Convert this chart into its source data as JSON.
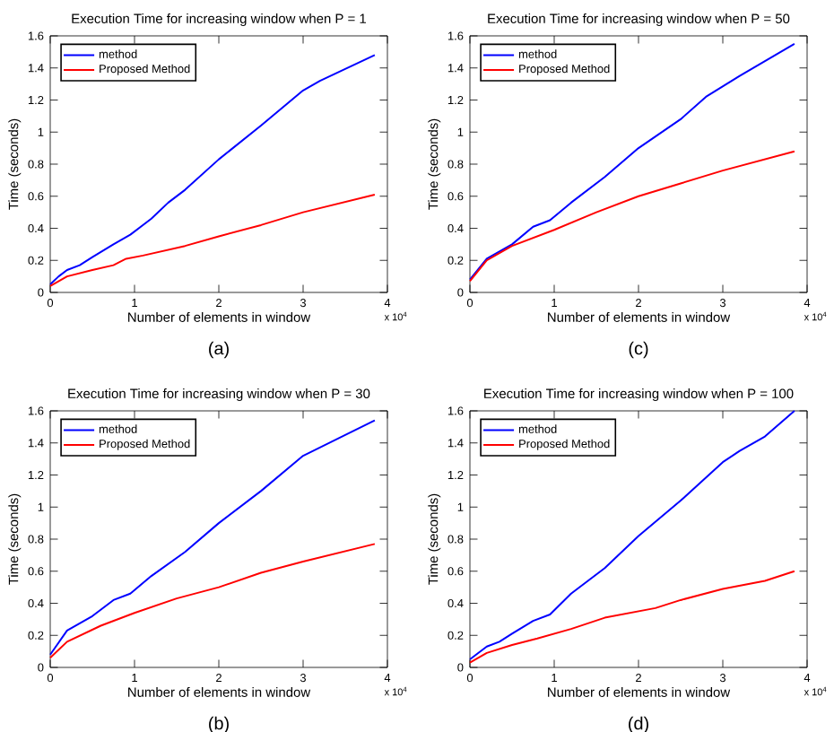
{
  "chart_data": [
    {
      "type": "line",
      "title": "Execution Time for increasing window when P = 1",
      "xlabel": "Number of elements in window",
      "ylabel": "Time (seconds)",
      "annotations": [
        "x 10$^{4}$",
        "(a)"
      ],
      "xlim": [
        0,
        4
      ],
      "ylim": [
        0,
        1.6
      ],
      "xticks": [
        0,
        1,
        2,
        3,
        4
      ],
      "yticks": [
        0,
        0.2,
        0.4,
        0.6,
        0.8,
        1,
        1.2,
        1.4,
        1.6
      ],
      "legend": "top left",
      "marker": "none",
      "line_style": "solid",
      "series": [
        {
          "name": "method",
          "color": "#0000ff",
          "x": [
            0,
            0.1,
            0.2,
            0.35,
            0.5,
            0.75,
            0.95,
            1.2,
            1.4,
            1.6,
            2.0,
            2.5,
            3.0,
            3.2,
            3.85
          ],
          "values": [
            0.05,
            0.1,
            0.14,
            0.17,
            0.22,
            0.3,
            0.36,
            0.46,
            0.56,
            0.64,
            0.83,
            1.04,
            1.26,
            1.32,
            1.48
          ]
        },
        {
          "name": "Proposed Method",
          "color": "#ff0000",
          "x": [
            0,
            0.2,
            0.5,
            0.75,
            0.9,
            1.1,
            1.6,
            2.0,
            2.5,
            3.0,
            3.85
          ],
          "values": [
            0.04,
            0.1,
            0.14,
            0.17,
            0.21,
            0.23,
            0.29,
            0.35,
            0.42,
            0.5,
            0.61
          ]
        }
      ]
    },
    {
      "type": "line",
      "title": "Execution Time for increasing window when P = 50",
      "xlabel": "Number of elements in window",
      "ylabel": "Time (seconds)",
      "annotations": [
        "x 10$^{4}$",
        "(c)"
      ],
      "xlim": [
        0,
        4
      ],
      "ylim": [
        0,
        1.6
      ],
      "xticks": [
        0,
        1,
        2,
        3,
        4
      ],
      "yticks": [
        0,
        0.2,
        0.4,
        0.6,
        0.8,
        1,
        1.2,
        1.4,
        1.6
      ],
      "legend": "top left",
      "marker": "none",
      "line_style": "solid",
      "series": [
        {
          "name": "method",
          "color": "#0000ff",
          "x": [
            0,
            0.2,
            0.5,
            0.75,
            0.95,
            1.2,
            1.6,
            2.0,
            2.5,
            2.8,
            3.2,
            3.85
          ],
          "values": [
            0.08,
            0.21,
            0.3,
            0.41,
            0.45,
            0.56,
            0.72,
            0.9,
            1.08,
            1.22,
            1.35,
            1.55
          ]
        },
        {
          "name": "Proposed Method",
          "color": "#ff0000",
          "x": [
            0,
            0.2,
            0.5,
            1.0,
            1.5,
            2.0,
            2.5,
            3.0,
            3.85
          ],
          "values": [
            0.07,
            0.2,
            0.29,
            0.39,
            0.5,
            0.6,
            0.68,
            0.76,
            0.88
          ]
        }
      ]
    },
    {
      "type": "line",
      "title": "Execution Time for increasing window when P = 30",
      "xlabel": "Number of elements in window",
      "ylabel": "Time (seconds)",
      "annotations": [
        "x 10$^{4}$",
        "(b)"
      ],
      "xlim": [
        0,
        4
      ],
      "ylim": [
        0,
        1.6
      ],
      "xticks": [
        0,
        1,
        2,
        3,
        4
      ],
      "yticks": [
        0,
        0.2,
        0.4,
        0.6,
        0.8,
        1,
        1.2,
        1.4,
        1.6
      ],
      "legend": "top left",
      "marker": "none",
      "line_style": "solid",
      "series": [
        {
          "name": "method",
          "color": "#0000ff",
          "x": [
            0,
            0.2,
            0.5,
            0.75,
            0.95,
            1.2,
            1.6,
            2.0,
            2.5,
            3.0,
            3.5,
            3.85
          ],
          "values": [
            0.08,
            0.23,
            0.32,
            0.42,
            0.46,
            0.57,
            0.72,
            0.9,
            1.1,
            1.32,
            1.45,
            1.54
          ]
        },
        {
          "name": "Proposed Method",
          "color": "#ff0000",
          "x": [
            0,
            0.2,
            0.6,
            1.0,
            1.5,
            2.0,
            2.5,
            3.0,
            3.85
          ],
          "values": [
            0.06,
            0.16,
            0.26,
            0.34,
            0.43,
            0.5,
            0.59,
            0.66,
            0.77
          ]
        }
      ]
    },
    {
      "type": "line",
      "title": "Execution Time for increasing window when P = 100",
      "xlabel": "Number of elements in window",
      "ylabel": "Time (seconds)",
      "annotations": [
        "x 10$^{4}$",
        "(d)"
      ],
      "xlim": [
        0,
        4
      ],
      "ylim": [
        0,
        1.6
      ],
      "xticks": [
        0,
        1,
        2,
        3,
        4
      ],
      "yticks": [
        0,
        0.2,
        0.4,
        0.6,
        0.8,
        1,
        1.2,
        1.4,
        1.6
      ],
      "legend": "top left",
      "marker": "none",
      "line_style": "solid",
      "series": [
        {
          "name": "method",
          "color": "#0000ff",
          "x": [
            0,
            0.2,
            0.35,
            0.5,
            0.75,
            0.95,
            1.2,
            1.6,
            2.0,
            2.5,
            3.0,
            3.2,
            3.5,
            3.85
          ],
          "values": [
            0.05,
            0.13,
            0.16,
            0.21,
            0.29,
            0.33,
            0.46,
            0.62,
            0.82,
            1.04,
            1.28,
            1.35,
            1.44,
            1.6
          ]
        },
        {
          "name": "Proposed Method",
          "color": "#ff0000",
          "x": [
            0,
            0.2,
            0.5,
            0.8,
            1.2,
            1.6,
            2.2,
            2.5,
            3.0,
            3.5,
            3.85
          ],
          "values": [
            0.03,
            0.09,
            0.14,
            0.18,
            0.24,
            0.31,
            0.37,
            0.42,
            0.49,
            0.54,
            0.6
          ]
        }
      ]
    }
  ]
}
